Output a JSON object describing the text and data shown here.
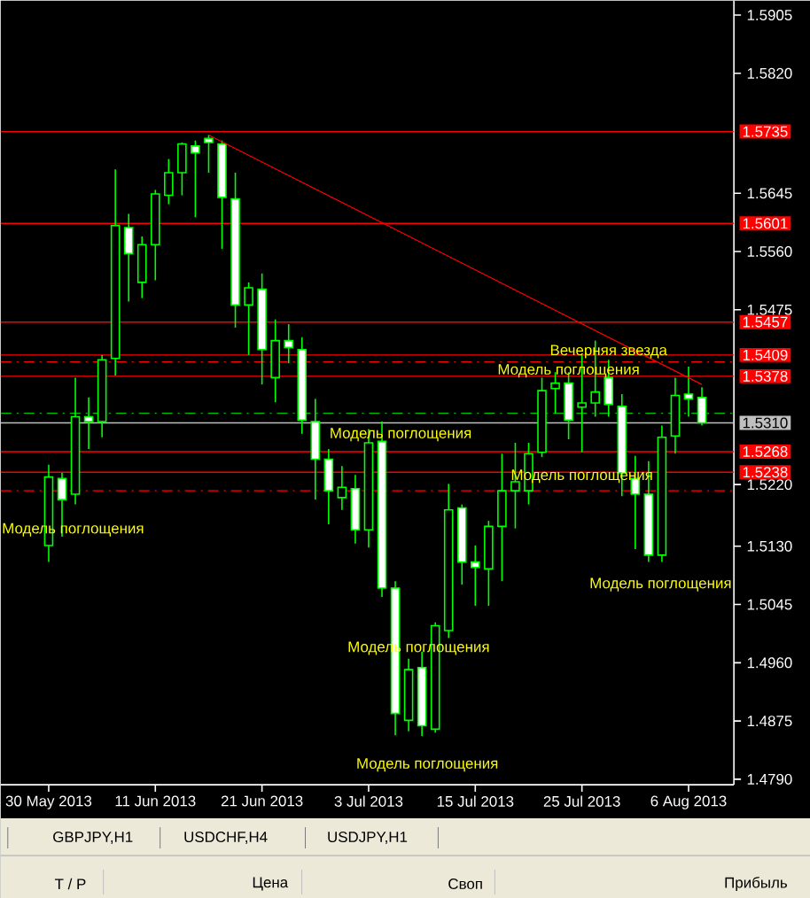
{
  "chart_data": {
    "type": "candlestick",
    "color": "#00ff00",
    "categories": [
      "30 May 2013",
      null,
      null,
      null,
      null,
      null,
      null,
      null,
      "11 Jun 2013",
      null,
      null,
      null,
      null,
      null,
      null,
      null,
      "21 Jun 2013",
      null,
      null,
      null,
      null,
      null,
      null,
      null,
      "3 Jul 2013",
      null,
      null,
      null,
      null,
      null,
      null,
      null,
      "15 Jul 2013",
      null,
      null,
      null,
      null,
      null,
      null,
      null,
      "25 Jul 2013",
      null,
      null,
      null,
      null,
      null,
      null,
      null,
      "6 Aug 2013",
      null
    ],
    "ohlc": [
      [
        1.5131,
        1.5249,
        1.5107,
        1.5231
      ],
      [
        1.5229,
        1.5237,
        1.5144,
        1.5198
      ],
      [
        1.5206,
        1.5376,
        1.5191,
        1.5319
      ],
      [
        1.5319,
        1.5347,
        1.5272,
        1.5312
      ],
      [
        1.5312,
        1.5409,
        1.5289,
        1.5402
      ],
      [
        1.5404,
        1.568,
        1.5379,
        1.5598
      ],
      [
        1.5595,
        1.5615,
        1.5487,
        1.5557
      ],
      [
        1.5515,
        1.5582,
        1.5492,
        1.557
      ],
      [
        1.557,
        1.565,
        1.5518,
        1.5644
      ],
      [
        1.5642,
        1.5695,
        1.5629,
        1.5675
      ],
      [
        1.5675,
        1.5719,
        1.5642,
        1.5717
      ],
      [
        1.5714,
        1.5722,
        1.561,
        1.5704
      ],
      [
        1.5725,
        1.573,
        1.5675,
        1.5719
      ],
      [
        1.5717,
        1.5722,
        1.5564,
        1.5639
      ],
      [
        1.5637,
        1.5675,
        1.5449,
        1.5482
      ],
      [
        1.5482,
        1.5515,
        1.5409,
        1.5507
      ],
      [
        1.5505,
        1.5528,
        1.5366,
        1.5417
      ],
      [
        1.5376,
        1.5461,
        1.534,
        1.543
      ],
      [
        1.543,
        1.5454,
        1.5397,
        1.542
      ],
      [
        1.5417,
        1.5435,
        1.5294,
        1.5314
      ],
      [
        1.5312,
        1.5345,
        1.5198,
        1.5257
      ],
      [
        1.5257,
        1.5272,
        1.5162,
        1.5211
      ],
      [
        1.5201,
        1.5247,
        1.5183,
        1.5216
      ],
      [
        1.5214,
        1.5234,
        1.5134,
        1.5154
      ],
      [
        1.5154,
        1.5301,
        1.5128,
        1.5281
      ],
      [
        1.5283,
        1.5312,
        1.5056,
        1.5069
      ],
      [
        1.5069,
        1.5079,
        1.4854,
        1.4886
      ],
      [
        1.4876,
        1.4966,
        1.486,
        1.495
      ],
      [
        1.4953,
        1.4976,
        1.4853,
        1.4868
      ],
      [
        1.4863,
        1.5019,
        1.4858,
        1.5014
      ],
      [
        1.5007,
        1.5221,
        1.4996,
        1.5183
      ],
      [
        1.5186,
        1.5191,
        1.5074,
        1.5107
      ],
      [
        1.5107,
        1.5131,
        1.5043,
        1.5099
      ],
      [
        1.5097,
        1.5167,
        1.5043,
        1.5159
      ],
      [
        1.5159,
        1.5265,
        1.5079,
        1.5211
      ],
      [
        1.5211,
        1.5281,
        1.5156,
        1.5224
      ],
      [
        1.5211,
        1.5281,
        1.5191,
        1.5265
      ],
      [
        1.5267,
        1.5376,
        1.526,
        1.5357
      ],
      [
        1.536,
        1.5384,
        1.5324,
        1.5368
      ],
      [
        1.5368,
        1.5384,
        1.5286,
        1.5314
      ],
      [
        1.5333,
        1.5409,
        1.5267,
        1.5339
      ],
      [
        1.5339,
        1.543,
        1.5319,
        1.5355
      ],
      [
        1.5376,
        1.5402,
        1.5319,
        1.5337
      ],
      [
        1.5334,
        1.5352,
        1.5203,
        1.5237
      ],
      [
        1.5229,
        1.5262,
        1.5126,
        1.5206
      ],
      [
        1.5206,
        1.5254,
        1.5107,
        1.5117
      ],
      [
        1.5117,
        1.5306,
        1.5107,
        1.5289
      ],
      [
        1.5291,
        1.5376,
        1.5265,
        1.535
      ],
      [
        1.5352,
        1.5392,
        1.5319,
        1.5345
      ],
      [
        1.5347,
        1.5362,
        1.5306,
        1.531
      ]
    ],
    "series": [
      {
        "type": "line",
        "color": "#ff0000",
        "values": [
          null,
          null,
          null,
          null,
          null,
          null,
          null,
          null,
          null,
          null,
          null,
          null,
          1.573,
          null,
          null,
          null,
          null,
          null,
          null,
          null,
          null,
          null,
          null,
          null,
          null,
          null,
          null,
          null,
          null,
          null,
          null,
          null,
          null,
          null,
          null,
          null,
          null,
          null,
          null,
          null,
          null,
          null,
          null,
          null,
          null,
          null,
          null,
          null,
          null,
          1.5366
        ]
      }
    ],
    "ylim": [
      1.4782,
      1.5926
    ],
    "yticks": [
      1.5905,
      {
        "value": 1.582,
        "label": "1.5820"
      },
      1.5645,
      {
        "value": 1.556,
        "label": "1.5560"
      },
      1.5475,
      {
        "value": 1.522,
        "label": "1.5220"
      },
      {
        "value": 1.513,
        "label": "1.5130"
      },
      1.5045,
      {
        "value": 1.496,
        "label": "1.4960"
      },
      1.4875,
      {
        "value": 1.479,
        "label": "1.4790"
      }
    ],
    "ref_lines": [
      {
        "axis": "y",
        "value": 1.5735,
        "label": "1.5735",
        "color": "#ff0000"
      },
      {
        "axis": "y",
        "value": 1.5601,
        "label": "1.5601",
        "color": "#ff0000"
      },
      {
        "axis": "y",
        "value": 1.5457,
        "label": "1.5457",
        "color": "#ff0000"
      },
      {
        "axis": "y",
        "value": 1.5409,
        "label": "1.5409",
        "color": "#ff0000"
      },
      {
        "axis": "y",
        "value": 1.5378,
        "label": "1.5378",
        "color": "#ff0000"
      },
      {
        "axis": "y",
        "value": 1.5268,
        "label": "1.5268",
        "color": "#ff0000"
      },
      {
        "axis": "y",
        "value": 1.5238,
        "label": "1.5238",
        "color": "#ff0000"
      },
      {
        "axis": "y",
        "value": 1.5399,
        "color": "#ff0000",
        "line_style": "dashed"
      },
      {
        "axis": "y",
        "value": 1.5211,
        "color": "#ff0000",
        "line_style": "dashed"
      },
      {
        "axis": "y",
        "value": 1.5324,
        "color": "#00c000",
        "line_style": "dashed"
      },
      {
        "axis": "y",
        "value": 1.531,
        "label": "1.5310",
        "color": "#c0c0c0"
      }
    ],
    "annotations": [
      "Модель поглощения",
      "Модель поглощения",
      {
        "text": "Модель поглощения",
        "y": 1.4981
      },
      "Модель поглощения",
      {
        "text": "Вечерняя звезда",
        "y": 1.5414
      },
      {
        "text": "Модель поглощения",
        "y": 1.5386
      },
      {
        "text": "Модель поглощения",
        "y": 1.5232
      },
      "Модель поглощения",
      "GBPJPY,H1",
      "USDCHF,H4",
      "USDJPY,H1",
      "Т / Р",
      "Цена",
      "Своп",
      "Прибыль"
    ]
  }
}
